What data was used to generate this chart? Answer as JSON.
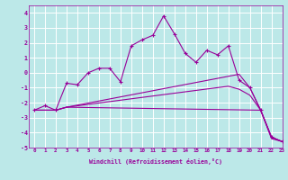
{
  "title": "",
  "xlabel": "Windchill (Refroidissement éolien,°C)",
  "xlim": [
    -0.5,
    23
  ],
  "ylim": [
    -5,
    4.5
  ],
  "xticks": [
    0,
    1,
    2,
    3,
    4,
    5,
    6,
    7,
    8,
    9,
    10,
    11,
    12,
    13,
    14,
    15,
    16,
    17,
    18,
    19,
    20,
    21,
    22,
    23
  ],
  "yticks": [
    -5,
    -4,
    -3,
    -2,
    -1,
    0,
    1,
    2,
    3,
    4
  ],
  "bg_color": "#bce8e8",
  "grid_color": "#ffffff",
  "line_color": "#990099",
  "line1_x": [
    0,
    1,
    2,
    3,
    4,
    5,
    6,
    7,
    8,
    9,
    10,
    11,
    12,
    13,
    14,
    15,
    16,
    17,
    18,
    19,
    20,
    21,
    22,
    23
  ],
  "line1_y": [
    -2.5,
    -2.2,
    -2.5,
    -0.7,
    -0.8,
    0.0,
    0.3,
    0.3,
    -0.6,
    1.8,
    2.2,
    2.5,
    3.8,
    2.6,
    1.3,
    0.7,
    1.5,
    1.2,
    1.8,
    -0.5,
    -1.0,
    -2.5,
    -4.3,
    -4.6
  ],
  "line2_x": [
    0,
    2,
    3,
    21,
    22,
    23
  ],
  "line2_y": [
    -2.5,
    -2.5,
    -2.3,
    -2.5,
    -4.3,
    -4.6
  ],
  "line3_x": [
    0,
    2,
    3,
    19,
    20,
    21,
    22,
    23
  ],
  "line3_y": [
    -2.5,
    -2.5,
    -2.3,
    -0.1,
    -1.0,
    -2.5,
    -4.3,
    -4.6
  ],
  "line4_x": [
    0,
    2,
    3,
    18,
    19,
    20,
    21,
    22,
    23
  ],
  "line4_y": [
    -2.5,
    -2.5,
    -2.3,
    -0.9,
    -1.1,
    -1.5,
    -2.5,
    -4.4,
    -4.6
  ]
}
